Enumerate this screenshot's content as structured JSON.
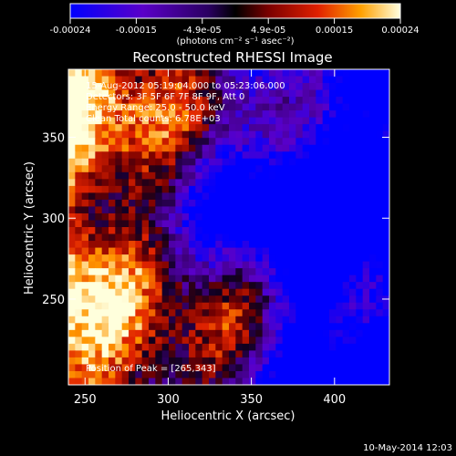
{
  "chart_data": {
    "type": "heatmap",
    "title": "Reconstructed RHESSI Image",
    "xlabel": "Heliocentric X (arcsec)",
    "ylabel": "Heliocentric Y (arcsec)",
    "xlim": [
      240,
      433
    ],
    "ylim": [
      197,
      392
    ],
    "x_ticks": [
      250,
      300,
      350,
      400
    ],
    "y_ticks": [
      250,
      300,
      350
    ],
    "colorbar": {
      "ticks": [
        "-0.00024",
        "-0.00015",
        "-4.9e-05",
        "4.9e-05",
        "0.00015",
        "0.00024"
      ],
      "unit_label": "(photons cm⁻² s⁻¹ asec⁻²)",
      "range": [
        -0.00024,
        0.00024
      ]
    },
    "annotations": {
      "time_range": "15-Aug-2012 05:19:04.000 to 05:23:06.000",
      "detectors": "Detectors: 3F 5F 6F 7F 8F 9F, Att 0",
      "energy": "Energy Range: 25.0 - 50.0 keV",
      "algorithm": "Clean     Total counts: 6.78E+03",
      "peak": "Position of Peak = [265,343]"
    },
    "peak_position": [
      265,
      343
    ],
    "grid": false
  },
  "footer": {
    "date": "10-May-2014 12:03"
  }
}
